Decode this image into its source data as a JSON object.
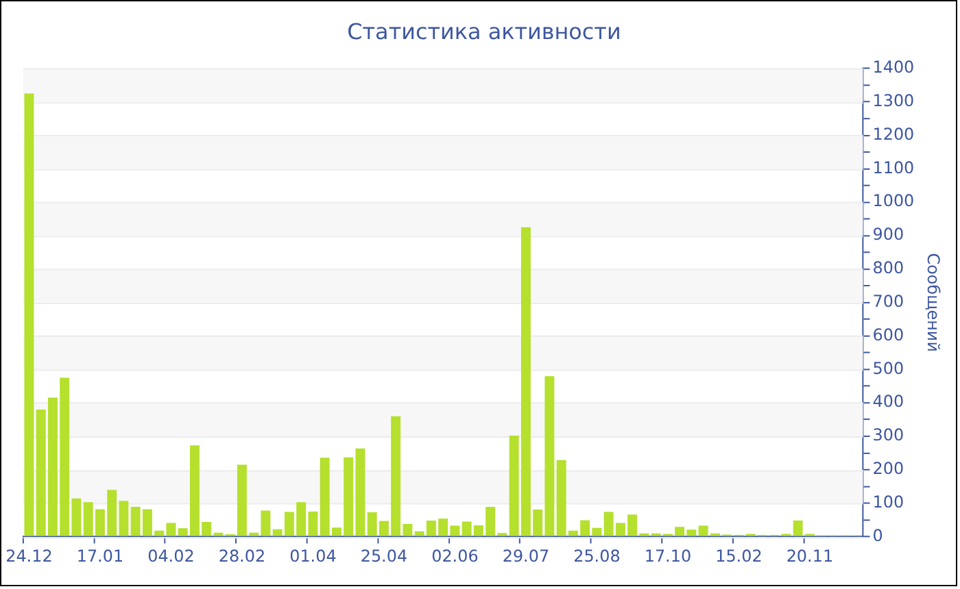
{
  "chart_data": {
    "type": "bar",
    "title": "Статистика активности",
    "ylabel": "Сообщений",
    "categories": [
      "24.12",
      null,
      null,
      null,
      null,
      null,
      "17.01",
      null,
      null,
      null,
      null,
      null,
      "04.02",
      null,
      null,
      null,
      null,
      null,
      "28.02",
      null,
      null,
      null,
      null,
      null,
      "01.04",
      null,
      null,
      null,
      null,
      null,
      "25.04",
      null,
      null,
      null,
      null,
      null,
      "02.06",
      null,
      null,
      null,
      null,
      null,
      "29.07",
      null,
      null,
      null,
      null,
      null,
      "25.08",
      null,
      null,
      null,
      null,
      null,
      "17.10",
      null,
      null,
      null,
      null,
      null,
      "15.02",
      null,
      null,
      null,
      null,
      null,
      "20.11",
      null,
      null,
      null,
      null
    ],
    "values": [
      1325,
      380,
      416,
      475,
      114,
      103,
      82,
      140,
      107,
      89,
      82,
      18,
      41,
      25,
      273,
      44,
      12,
      7,
      215,
      12,
      78,
      22,
      74,
      103,
      75,
      236,
      27,
      237,
      264,
      73,
      47,
      360,
      38,
      16,
      48,
      54,
      33,
      45,
      34,
      89,
      11,
      302,
      925,
      81,
      480,
      229,
      18,
      49,
      26,
      74,
      41,
      66,
      10,
      10,
      8,
      29,
      21,
      33,
      10,
      6,
      5,
      8,
      5,
      5,
      8,
      48,
      8,
      4,
      4,
      4,
      4
    ],
    "color": "#b5e02e",
    "ylim": [
      0,
      1400
    ],
    "yticks": [
      0,
      {
        "value": 50,
        "label": null
      },
      100,
      {
        "value": 150,
        "label": null
      },
      200,
      {
        "value": 250,
        "label": null
      },
      300,
      {
        "value": 350,
        "label": null
      },
      400,
      {
        "value": 450,
        "label": null
      },
      500,
      {
        "value": 550,
        "label": null
      },
      600,
      {
        "value": 650,
        "label": null
      },
      700,
      {
        "value": 750,
        "label": null
      },
      800,
      {
        "value": 850,
        "label": null
      },
      900,
      {
        "value": 950,
        "label": null
      },
      1000,
      {
        "value": 1050,
        "label": null
      },
      1100,
      {
        "value": 1150,
        "label": null
      },
      1200,
      {
        "value": 1250,
        "label": null
      },
      1300,
      {
        "value": 1350,
        "label": null
      },
      1400
    ],
    "grid": true
  }
}
